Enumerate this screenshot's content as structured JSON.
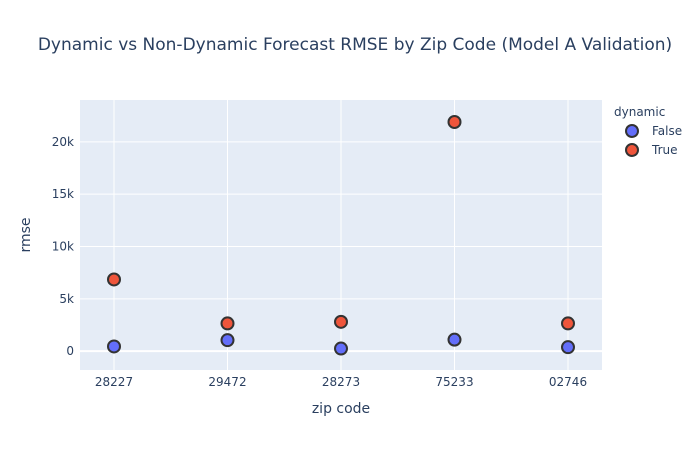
{
  "chart_data": {
    "type": "scatter",
    "title": "Dynamic vs Non-Dynamic Forecast RMSE by Zip Code (Model A Validation)",
    "xlabel": "zip code",
    "ylabel": "rmse",
    "categories": [
      "28227",
      "29472",
      "28273",
      "75233",
      "02746"
    ],
    "ylim": [
      -1800,
      24000
    ],
    "yticks": [
      0,
      5000,
      10000,
      15000,
      20000
    ],
    "ytick_labels": [
      "0",
      "5k",
      "10k",
      "15k",
      "20k"
    ],
    "grid": true,
    "legend": {
      "title": "dynamic",
      "placement": "top-right"
    },
    "series": [
      {
        "name": "False",
        "color": "#636efa",
        "values": [
          450,
          1050,
          250,
          1100,
          380
        ]
      },
      {
        "name": "True",
        "color": "#ef553b",
        "values": [
          6850,
          2650,
          2800,
          21900,
          2650
        ]
      }
    ]
  }
}
